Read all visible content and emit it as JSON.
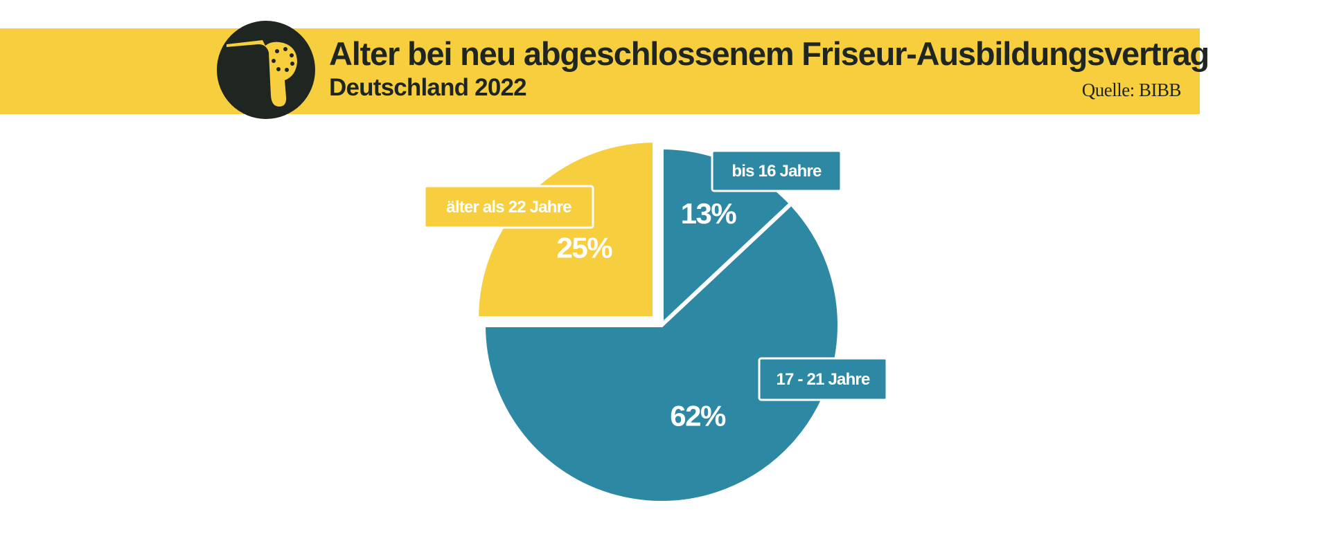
{
  "header": {
    "title": "Alter bei neu abgeschlossenem Friseur-Ausbildungsvertrag",
    "subtitle": "Deutschland 2022",
    "source": "Quelle: BIBB"
  },
  "logo": {
    "icon": "hair-dryer-icon"
  },
  "colors": {
    "banner": "#f7ce3e",
    "teal": "#2d89a3",
    "yellow": "#f7ce3e",
    "dark": "#1f2520"
  },
  "chart_data": {
    "type": "pie",
    "title": "Alter bei neu abgeschlossenem Friseur-Ausbildungsvertrag",
    "subtitle": "Deutschland 2022",
    "slices": [
      {
        "label": "bis 16 Jahre",
        "value": 13,
        "value_label": "13%",
        "color": "#2d89a3"
      },
      {
        "label": "17 - 21 Jahre",
        "value": 62,
        "value_label": "62%",
        "color": "#2d89a3"
      },
      {
        "label": "älter als 22 Jahre",
        "value": 25,
        "value_label": "25%",
        "color": "#f7ce3e"
      }
    ]
  }
}
